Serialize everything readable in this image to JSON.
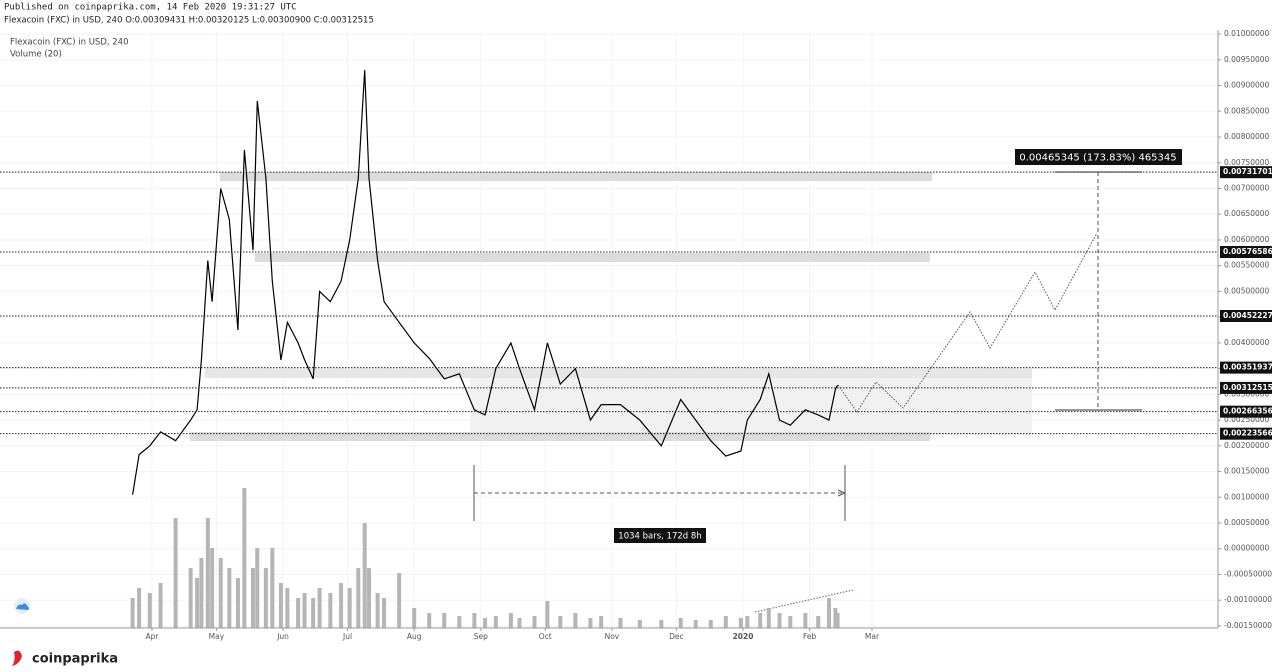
{
  "header": {
    "published": "Published on coinpaprika.com, 14 Feb 2020 19:31:27 UTC",
    "symbol_line": "Flexacoin (FXC) in USD, 240 O:0.00309431 H:0.00320125 L:0.00300900 C:0.00312515"
  },
  "footer": {
    "brand": "coinpaprika"
  },
  "chart_data": {
    "type": "line",
    "series": [
      {
        "name": "Flexacoin (FXC) in USD, 240",
        "color": "#000000",
        "x": [
          -9,
          -6,
          -1,
          4,
          11,
          18,
          21,
          23,
          26,
          28,
          32,
          36,
          40,
          43,
          47,
          49,
          53,
          56,
          60,
          63,
          68,
          71,
          75,
          78,
          83,
          88,
          92,
          96,
          99,
          101,
          105,
          108,
          115,
          122,
          129,
          136,
          143,
          150,
          155,
          160,
          167,
          171,
          178,
          184,
          190,
          197,
          204,
          209,
          218,
          227,
          237,
          246,
          253,
          260,
          267,
          274,
          277,
          283,
          287,
          292,
          297,
          304,
          310,
          315,
          318,
          319
        ],
        "values": [
          0.00105,
          0.00183,
          0.002,
          0.00227,
          0.0021,
          0.0025,
          0.0027,
          0.00367,
          0.0056,
          0.0048,
          0.007,
          0.0064,
          0.00425,
          0.00775,
          0.0058,
          0.0087,
          0.0072,
          0.0052,
          0.00367,
          0.0044,
          0.004,
          0.00367,
          0.0033,
          0.005,
          0.0048,
          0.0052,
          0.006,
          0.0072,
          0.0093,
          0.0072,
          0.0056,
          0.0048,
          0.0044,
          0.004,
          0.0037,
          0.0033,
          0.0034,
          0.0027,
          0.0026,
          0.0035,
          0.004,
          0.0035,
          0.0027,
          0.004,
          0.0032,
          0.0035,
          0.0025,
          0.0028,
          0.0028,
          0.0025,
          0.002,
          0.0029,
          0.0025,
          0.0021,
          0.0018,
          0.0019,
          0.0025,
          0.0029,
          0.0034,
          0.0025,
          0.0024,
          0.0027,
          0.0026,
          0.0025,
          0.0031,
          0.00318
        ]
      },
      {
        "name": "Volume (20)",
        "color": "#b5b5b5",
        "axis": "y2",
        "x": [
          -9,
          -6,
          -1,
          4,
          11,
          18,
          21,
          23,
          26,
          28,
          32,
          36,
          40,
          43,
          47,
          49,
          53,
          56,
          60,
          63,
          68,
          71,
          75,
          78,
          83,
          88,
          92,
          96,
          99,
          101,
          105,
          108,
          115,
          122,
          129,
          136,
          143,
          150,
          155,
          160,
          167,
          171,
          178,
          184,
          190,
          197,
          204,
          209,
          218,
          227,
          237,
          246,
          253,
          260,
          267,
          274,
          277,
          283,
          287,
          292,
          297,
          304,
          310,
          315,
          318,
          319
        ],
        "values": [
          30,
          40,
          35,
          45,
          110,
          60,
          50,
          70,
          110,
          80,
          70,
          60,
          50,
          140,
          60,
          80,
          60,
          80,
          45,
          40,
          30,
          35,
          30,
          40,
          35,
          45,
          40,
          60,
          105,
          60,
          35,
          30,
          55,
          20,
          15,
          15,
          12,
          15,
          10,
          12,
          15,
          10,
          12,
          27,
          12,
          15,
          10,
          12,
          10,
          8,
          8,
          10,
          8,
          8,
          12,
          10,
          12,
          15,
          20,
          15,
          12,
          15,
          12,
          30,
          20,
          15
        ]
      }
    ],
    "xlim": [
      -70.7,
      496
    ],
    "xticks": [
      {
        "value": 0,
        "label": "Apr"
      },
      {
        "value": 30,
        "label": "May"
      },
      {
        "value": 61,
        "label": "Jun"
      },
      {
        "value": 91,
        "label": "Jul"
      },
      {
        "value": 122,
        "label": "Aug"
      },
      {
        "value": 153,
        "label": "Sep"
      },
      {
        "value": 183,
        "label": "Oct"
      },
      {
        "value": 214,
        "label": "Nov"
      },
      {
        "value": 244,
        "label": "Dec"
      },
      {
        "value": 275,
        "label": "2020"
      },
      {
        "value": 306,
        "label": "Feb"
      },
      {
        "value": 335,
        "label": "Mar"
      }
    ],
    "ylim": [
      -0.00154,
      0.01006
    ],
    "yticks": [
      {
        "value": 0.01,
        "label": "0.01000000"
      },
      {
        "value": 0.0095,
        "label": "0.00950000"
      },
      {
        "value": 0.009,
        "label": "0.00900000"
      },
      {
        "value": 0.0085,
        "label": "0.00850000"
      },
      {
        "value": 0.008,
        "label": "0.00800000"
      },
      {
        "value": 0.0075,
        "label": "0.00750000"
      },
      {
        "value": 0.007,
        "label": "0.00700000"
      },
      {
        "value": 0.0065,
        "label": "0.00650000"
      },
      {
        "value": 0.006,
        "label": "0.00600000"
      },
      {
        "value": 0.0055,
        "label": "0.00550000"
      },
      {
        "value": 0.005,
        "label": "0.00500000"
      },
      {
        "value": 0.0045,
        "label": "0.00450000"
      },
      {
        "value": 0.004,
        "label": "0.00400000"
      },
      {
        "value": 0.0035,
        "label": "0.00350000"
      },
      {
        "value": 0.003,
        "label": "0.00300000"
      },
      {
        "value": 0.0025,
        "label": "0.00250000"
      },
      {
        "value": 0.002,
        "label": "0.00200000"
      },
      {
        "value": 0.0015,
        "label": "0.00150000"
      },
      {
        "value": 0.001,
        "label": "0.00100000"
      },
      {
        "value": 0.0005,
        "label": "0.00050000"
      },
      {
        "value": 0,
        "label": "0.00000000"
      },
      {
        "value": -0.0005,
        "label": "-0.00050000"
      },
      {
        "value": -0.001,
        "label": "-0.00100000"
      },
      {
        "value": -0.0015,
        "label": "-0.00150000"
      }
    ],
    "y2lim": [
      0,
      150
    ],
    "grid": true,
    "levels": [
      0.00731701,
      0.00576586,
      0.00452227,
      0.00351937,
      0.00312515,
      0.00266356,
      0.00223566
    ],
    "annotations": [
      "0.00465345 (173.83%) 465345",
      "1034 bars, 172d 8h"
    ]
  }
}
